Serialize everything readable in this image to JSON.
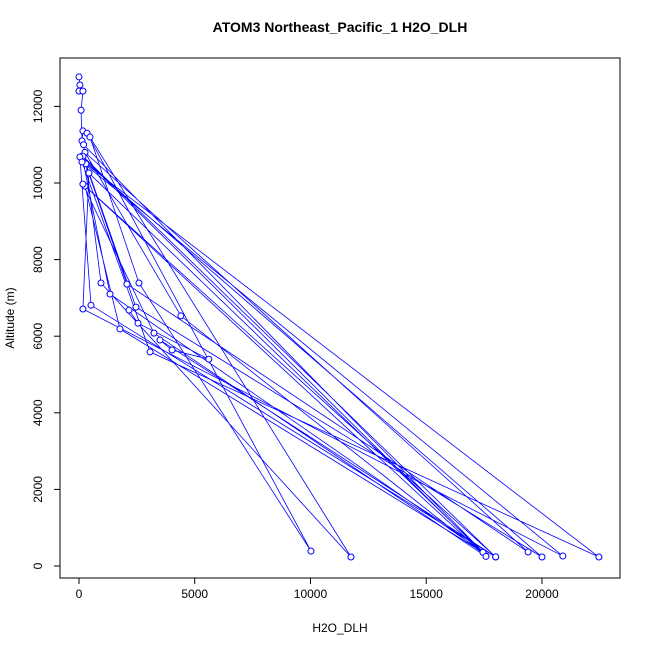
{
  "chart_data": {
    "type": "line",
    "title": "ATOM3 Northeast_Pacific_1 H2O_DLH",
    "x_label": "H2O_DLH",
    "y_label": "Altitude (m)",
    "color": "#0000ff",
    "x": [
      0,
      40,
      0,
      170,
      90,
      130,
      170,
      350,
      10020,
      2590,
      475,
      11750,
      950,
      200,
      17450,
      1340,
      130,
      17580,
      4400,
      260,
      19400,
      2070,
      170,
      18000,
      520,
      40,
      20000,
      2460,
      300,
      22460,
      3070,
      130,
      20900,
      170,
      430,
      17450,
      1770,
      260,
      17580,
      3240,
      170,
      18000,
      3500,
      4020,
      5610,
      2550,
      2160
    ],
    "values": [
      12770,
      12560,
      12400,
      12400,
      11900,
      11100,
      11360,
      11300,
      390,
      7390,
      11200,
      235,
      7390,
      11000,
      365,
      7100,
      10700,
      260,
      6530,
      10800,
      365,
      7360,
      10700,
      235,
      6810,
      10680,
      235,
      6760,
      10500,
      235,
      5590,
      10550,
      260,
      6710,
      10260,
      360,
      6190,
      9920,
      250,
      6080,
      9970,
      240,
      5900,
      5640,
      5400,
      6340,
      6680
    ],
    "xlim": [
      -820,
      23370
    ],
    "ylim": [
      -313,
      13264
    ],
    "xticks": [
      0,
      5000,
      10000,
      15000,
      20000
    ],
    "yticks": [
      0,
      2000,
      4000,
      6000,
      8000,
      10000,
      12000
    ]
  }
}
